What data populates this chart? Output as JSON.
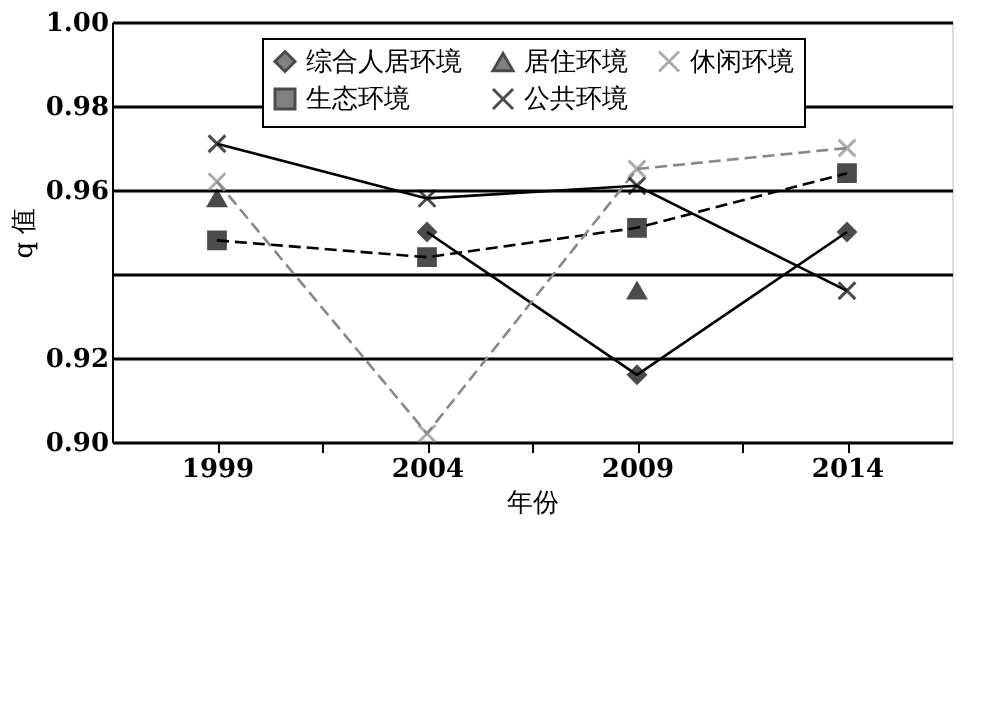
{
  "chart_data": {
    "type": "line",
    "xlabel": "年份",
    "ylabel": "q 值",
    "x": [
      1999,
      2004,
      2009,
      2014
    ],
    "xlim": [
      1996.5,
      2016.5
    ],
    "xticks": [
      1999,
      {
        "value": 2001.5,
        "label": null
      },
      2004,
      {
        "value": 2006.5,
        "label": null
      },
      2009,
      {
        "value": 2011.5,
        "label": null
      },
      2014
    ],
    "ylim": [
      0.9,
      1.0
    ],
    "yticks": [
      {
        "value": 0.9,
        "label": "0.90"
      },
      {
        "value": 0.92,
        "label": "0.92"
      },
      {
        "value": 0.94,
        "label": null
      },
      {
        "value": 0.96,
        "label": "0.96"
      },
      {
        "value": 0.98,
        "label": "0.98"
      },
      {
        "value": 1.0,
        "label": "1.00"
      }
    ],
    "grid": "y",
    "legend": "top",
    "series": [
      {
        "name": "综合人居环境",
        "color": "#000000",
        "marker": "diamond",
        "line_style": "solid",
        "values": [
          null,
          0.95,
          0.916,
          0.95
        ]
      },
      {
        "name": "生态环境",
        "color": "#000000",
        "marker": "square",
        "line_style": "dashed",
        "values": [
          0.948,
          0.944,
          0.951,
          0.964
        ]
      },
      {
        "name": "居住环境",
        "color": "#000000",
        "marker": "triangle",
        "line_style": "dashed",
        "values": [
          0.958,
          null,
          0.936,
          null
        ]
      },
      {
        "name": "公共环境",
        "color": "#000000",
        "marker": "cross",
        "line_style": "solid",
        "values": [
          0.971,
          0.958,
          0.961,
          0.936
        ]
      },
      {
        "name": "休闲环境",
        "color": "#888888",
        "marker": "cross",
        "line_style": "dashed",
        "values": [
          0.962,
          0.902,
          0.965,
          0.97
        ]
      }
    ]
  }
}
